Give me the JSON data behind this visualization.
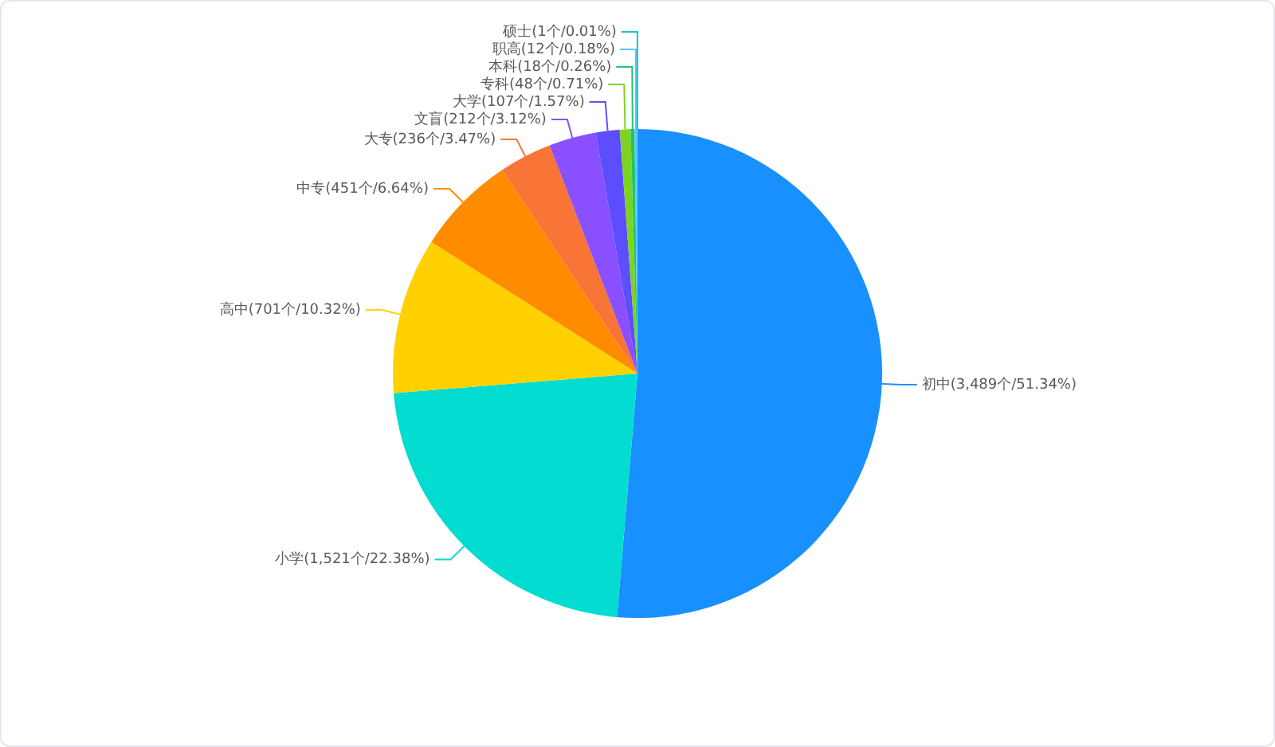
{
  "chart_data": {
    "type": "pie",
    "categories": [
      "初中",
      "小学",
      "高中",
      "中专",
      "大专",
      "文盲",
      "大学",
      "专科",
      "本科",
      "职高",
      "硕士"
    ],
    "values": [
      51.34,
      22.38,
      10.32,
      6.64,
      3.47,
      3.12,
      1.57,
      0.71,
      0.26,
      0.18,
      0.01
    ],
    "colors": [
      "#1890ff",
      "#03dcd0",
      "#ffd100",
      "#ff8c00",
      "#f87437",
      "#8a4fff",
      "#5c4dff",
      "#7ed321",
      "#1fc46e",
      "#5bc5ff",
      "#10c8c8"
    ],
    "value_labels": [
      "(3,489个/51.34%)",
      "(1,521个/22.38%)",
      "(701个/10.32%)",
      "(451个/6.64%)",
      "(236个/3.47%)",
      "(212个/3.12%)",
      "(107个/1.57%)",
      "(48个/0.71%)",
      "(18个/0.26%)",
      "(12个/0.18%)",
      "(1个/0.01%)"
    ]
  }
}
